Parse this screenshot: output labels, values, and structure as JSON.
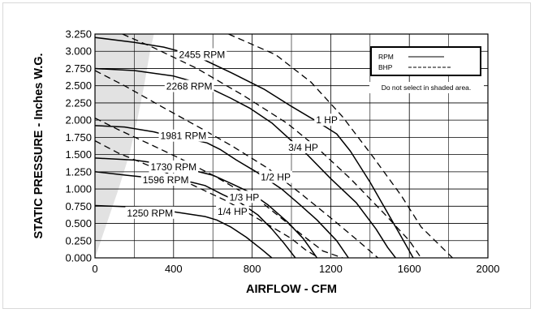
{
  "chart_data": {
    "type": "line",
    "xlabel": "AIRFLOW - CFM",
    "ylabel": "STATIC PRESSURE - Inches W.G.",
    "xlim": [
      0,
      2000
    ],
    "ylim": [
      0,
      3.25
    ],
    "x_ticks": [
      "0",
      "400",
      "800",
      "1200",
      "1600",
      "2000"
    ],
    "y_ticks": [
      "0.000",
      "0.250",
      "0.500",
      "0.750",
      "1.000",
      "1.250",
      "1.500",
      "1.750",
      "2.000",
      "2.250",
      "2.500",
      "2.750",
      "3.000",
      "3.250"
    ],
    "grid": true,
    "legend": {
      "position": "top-right",
      "entries": [
        {
          "label": "RPM",
          "style": "solid"
        },
        {
          "label": "BHP",
          "style": "dashed"
        }
      ],
      "note": "Do not select in shaded area."
    },
    "shaded_region": {
      "boundary_x": [
        0,
        60,
        120,
        175,
        215,
        250,
        280,
        300
      ],
      "boundary_y": [
        0,
        0.5,
        1.0,
        1.5,
        2.0,
        2.5,
        3.0,
        3.25
      ]
    },
    "series": [
      {
        "name": "2455 RPM",
        "style": "solid",
        "points": [
          [
            0,
            3.2
          ],
          [
            200,
            3.13
          ],
          [
            350,
            3.06
          ],
          [
            470,
            2.97
          ],
          [
            560,
            2.87
          ],
          [
            700,
            2.68
          ],
          [
            860,
            2.45
          ],
          [
            1000,
            2.2
          ],
          [
            1130,
            1.98
          ],
          [
            1230,
            1.8
          ],
          [
            1300,
            1.55
          ],
          [
            1400,
            1.1
          ],
          [
            1500,
            0.6
          ],
          [
            1580,
            0.2
          ],
          [
            1620,
            0.0
          ]
        ],
        "label": "2455 RPM",
        "label_x": 545,
        "label_y": 2.95
      },
      {
        "name": "2268 RPM",
        "style": "solid",
        "points": [
          [
            0,
            2.75
          ],
          [
            200,
            2.72
          ],
          [
            400,
            2.64
          ],
          [
            500,
            2.56
          ],
          [
            580,
            2.47
          ],
          [
            690,
            2.32
          ],
          [
            790,
            2.17
          ],
          [
            900,
            1.96
          ],
          [
            1000,
            1.7
          ],
          [
            1080,
            1.5
          ],
          [
            1200,
            1.15
          ],
          [
            1330,
            0.8
          ],
          [
            1430,
            0.42
          ],
          [
            1490,
            0.15
          ],
          [
            1530,
            0.0
          ]
        ],
        "label": "2268 RPM",
        "label_x": 480,
        "label_y": 2.49
      },
      {
        "name": "1981 RPM",
        "style": "solid",
        "points": [
          [
            0,
            1.92
          ],
          [
            150,
            1.9
          ],
          [
            300,
            1.83
          ],
          [
            380,
            1.77
          ],
          [
            490,
            1.72
          ],
          [
            570,
            1.67
          ],
          [
            640,
            1.57
          ],
          [
            720,
            1.42
          ],
          [
            820,
            1.25
          ],
          [
            950,
            1.0
          ],
          [
            1040,
            0.78
          ],
          [
            1130,
            0.55
          ],
          [
            1230,
            0.25
          ],
          [
            1290,
            0.0
          ]
        ],
        "label": "1981 RPM",
        "label_x": 450,
        "label_y": 1.77
      },
      {
        "name": "1730 RPM",
        "style": "solid",
        "points": [
          [
            0,
            1.45
          ],
          [
            200,
            1.42
          ],
          [
            300,
            1.38
          ],
          [
            500,
            1.27
          ],
          [
            600,
            1.2
          ],
          [
            700,
            1.07
          ],
          [
            790,
            0.95
          ],
          [
            880,
            0.77
          ],
          [
            980,
            0.52
          ],
          [
            1060,
            0.28
          ],
          [
            1130,
            0.0
          ]
        ],
        "label": "1730 RPM",
        "label_x": 400,
        "label_y": 1.32
      },
      {
        "name": "1596 RPM",
        "style": "solid",
        "points": [
          [
            0,
            1.25
          ],
          [
            160,
            1.2
          ],
          [
            260,
            1.17
          ],
          [
            490,
            1.1
          ],
          [
            560,
            1.05
          ],
          [
            650,
            0.92
          ],
          [
            740,
            0.8
          ],
          [
            830,
            0.62
          ],
          [
            900,
            0.42
          ],
          [
            960,
            0.22
          ],
          [
            1020,
            0.0
          ]
        ],
        "label": "1596 RPM",
        "label_x": 360,
        "label_y": 1.13
      },
      {
        "name": "1250 RPM",
        "style": "solid",
        "points": [
          [
            0,
            0.76
          ],
          [
            200,
            0.74
          ],
          [
            260,
            0.73
          ],
          [
            560,
            0.6
          ],
          [
            620,
            0.55
          ],
          [
            690,
            0.45
          ],
          [
            770,
            0.3
          ],
          [
            850,
            0.12
          ],
          [
            900,
            0.0
          ]
        ],
        "label": "1250 RPM",
        "label_x": 280,
        "label_y": 0.65
      }
    ],
    "bhp_lines": [
      {
        "name": "1 HP",
        "style": "dashed",
        "points": [
          [
            680,
            3.25
          ],
          [
            920,
            2.95
          ],
          [
            1100,
            2.55
          ],
          [
            1260,
            2.05
          ],
          [
            1420,
            1.45
          ],
          [
            1560,
            0.9
          ],
          [
            1660,
            0.45
          ],
          [
            1820,
            0.0
          ]
        ],
        "label": "1 HP",
        "label_x": 1180,
        "label_y": 2.0
      },
      {
        "name": "3/4 HP",
        "style": "dashed",
        "points": [
          [
            140,
            3.25
          ],
          [
            300,
            3.05
          ],
          [
            520,
            2.75
          ],
          [
            760,
            2.35
          ],
          [
            980,
            1.95
          ],
          [
            1130,
            1.6
          ],
          [
            1300,
            1.15
          ],
          [
            1470,
            0.65
          ],
          [
            1600,
            0.25
          ],
          [
            1660,
            0.0
          ]
        ],
        "label": "3/4 HP",
        "label_x": 1060,
        "label_y": 1.6
      },
      {
        "name": "1/2 HP",
        "style": "dashed",
        "points": [
          [
            0,
            2.72
          ],
          [
            150,
            2.5
          ],
          [
            350,
            2.18
          ],
          [
            540,
            1.88
          ],
          [
            700,
            1.62
          ],
          [
            880,
            1.3
          ],
          [
            1040,
            0.95
          ],
          [
            1200,
            0.58
          ],
          [
            1330,
            0.27
          ],
          [
            1440,
            0.0
          ]
        ],
        "label": "1/2 HP",
        "label_x": 920,
        "label_y": 1.17
      },
      {
        "name": "1/3 HP",
        "style": "dashed",
        "points": [
          [
            0,
            2.03
          ],
          [
            120,
            1.86
          ],
          [
            280,
            1.65
          ],
          [
            450,
            1.42
          ],
          [
            600,
            1.2
          ],
          [
            740,
            0.97
          ],
          [
            860,
            0.78
          ],
          [
            960,
            0.55
          ],
          [
            1060,
            0.32
          ],
          [
            1160,
            0.1
          ],
          [
            1260,
            0.0
          ]
        ],
        "label": "1/3 HP",
        "label_x": 760,
        "label_y": 0.88
      },
      {
        "name": "1/4 HP",
        "style": "dashed",
        "points": [
          [
            0,
            1.7
          ],
          [
            120,
            1.52
          ],
          [
            240,
            1.38
          ],
          [
            400,
            1.19
          ],
          [
            540,
            1.0
          ],
          [
            660,
            0.84
          ],
          [
            780,
            0.65
          ],
          [
            900,
            0.45
          ],
          [
            1000,
            0.28
          ],
          [
            1070,
            0.12
          ],
          [
            1140,
            0.0
          ]
        ],
        "label": "1/4 HP",
        "label_x": 700,
        "label_y": 0.67
      }
    ]
  }
}
